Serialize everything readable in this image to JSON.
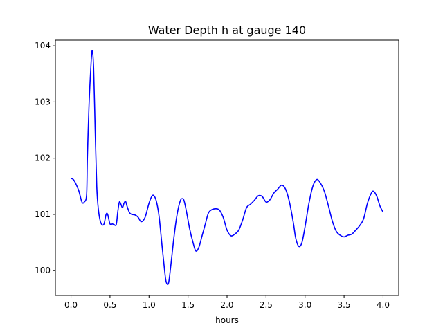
{
  "chart_data": {
    "type": "line",
    "title": "Water Depth h at gauge 140",
    "xlabel": "hours",
    "ylabel": "",
    "xlim": [
      -0.2,
      4.2
    ],
    "ylim": [
      99.56,
      104.1
    ],
    "xticks": [
      0.0,
      0.5,
      1.0,
      1.5,
      2.0,
      2.5,
      3.0,
      3.5,
      4.0
    ],
    "xtick_labels": [
      "0.0",
      "0.5",
      "1.0",
      "1.5",
      "2.0",
      "2.5",
      "3.0",
      "3.5",
      "4.0"
    ],
    "yticks": [
      100,
      101,
      102,
      103,
      104
    ],
    "ytick_labels": [
      "100",
      "101",
      "102",
      "103",
      "104"
    ],
    "grid": false,
    "series": [
      {
        "color": "#0000ff",
        "x": [
          0.0,
          0.03,
          0.06,
          0.1,
          0.14,
          0.17,
          0.2,
          0.21,
          0.23,
          0.25,
          0.27,
          0.29,
          0.31,
          0.33,
          0.35,
          0.38,
          0.42,
          0.45,
          0.47,
          0.5,
          0.53,
          0.55,
          0.58,
          0.6,
          0.62,
          0.64,
          0.66,
          0.68,
          0.7,
          0.72,
          0.75,
          0.78,
          0.82,
          0.86,
          0.9,
          0.95,
          1.0,
          1.04,
          1.07,
          1.1,
          1.13,
          1.17,
          1.2,
          1.22,
          1.25,
          1.28,
          1.32,
          1.36,
          1.4,
          1.43,
          1.45,
          1.48,
          1.52,
          1.56,
          1.6,
          1.64,
          1.68,
          1.72,
          1.76,
          1.8,
          1.85,
          1.9,
          1.95,
          2.0,
          2.05,
          2.1,
          2.15,
          2.2,
          2.25,
          2.3,
          2.35,
          2.4,
          2.45,
          2.5,
          2.55,
          2.6,
          2.65,
          2.7,
          2.75,
          2.8,
          2.85,
          2.88,
          2.92,
          2.96,
          3.0,
          3.05,
          3.1,
          3.15,
          3.2,
          3.25,
          3.3,
          3.35,
          3.4,
          3.45,
          3.5,
          3.55,
          3.6,
          3.65,
          3.7,
          3.75,
          3.8,
          3.85,
          3.88,
          3.92,
          3.96,
          4.0
        ],
        "values": [
          101.64,
          101.62,
          101.55,
          101.42,
          101.22,
          101.22,
          101.35,
          102.0,
          102.9,
          103.5,
          103.91,
          103.6,
          102.5,
          101.5,
          101.1,
          100.86,
          100.82,
          101.0,
          101.0,
          100.83,
          100.83,
          100.82,
          100.82,
          101.05,
          101.22,
          101.18,
          101.12,
          101.2,
          101.23,
          101.14,
          101.03,
          101.0,
          100.99,
          100.95,
          100.87,
          100.95,
          101.2,
          101.33,
          101.32,
          101.2,
          100.95,
          100.4,
          100.0,
          99.8,
          99.78,
          100.1,
          100.6,
          101.0,
          101.24,
          101.28,
          101.24,
          101.05,
          100.75,
          100.52,
          100.35,
          100.42,
          100.62,
          100.82,
          101.02,
          101.08,
          101.1,
          101.08,
          100.95,
          100.72,
          100.62,
          100.65,
          100.72,
          100.9,
          101.12,
          101.18,
          101.25,
          101.33,
          101.32,
          101.22,
          101.26,
          101.38,
          101.45,
          101.52,
          101.45,
          101.22,
          100.85,
          100.58,
          100.43,
          100.5,
          100.78,
          101.2,
          101.5,
          101.62,
          101.55,
          101.4,
          101.15,
          100.88,
          100.7,
          100.63,
          100.6,
          100.63,
          100.65,
          100.72,
          100.8,
          100.92,
          101.2,
          101.38,
          101.41,
          101.32,
          101.15,
          101.04
        ]
      }
    ]
  }
}
